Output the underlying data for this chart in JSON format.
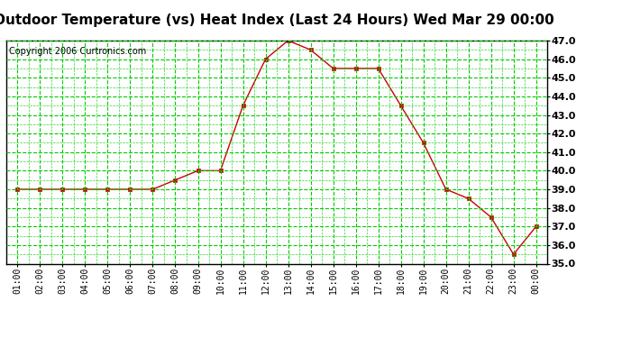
{
  "title": "Outdoor Temperature (vs) Heat Index (Last 24 Hours) Wed Mar 29 00:00",
  "copyright": "Copyright 2006 Curtronics.com",
  "x_labels": [
    "01:00",
    "02:00",
    "03:00",
    "04:00",
    "05:00",
    "06:00",
    "07:00",
    "08:00",
    "09:00",
    "10:00",
    "11:00",
    "12:00",
    "13:00",
    "14:00",
    "15:00",
    "16:00",
    "17:00",
    "18:00",
    "19:00",
    "20:00",
    "21:00",
    "22:00",
    "23:00",
    "00:00"
  ],
  "y_values": [
    39.0,
    39.0,
    39.0,
    39.0,
    39.0,
    39.0,
    39.0,
    39.5,
    40.0,
    40.0,
    43.5,
    46.0,
    47.0,
    46.5,
    45.5,
    45.5,
    45.5,
    43.5,
    41.5,
    39.0,
    38.5,
    37.5,
    35.5,
    37.0
  ],
  "line_color": "#cc0000",
  "marker_color": "#cc0000",
  "marker_style": "s",
  "marker_size": 2.5,
  "background_color": "#ffffff",
  "grid_color": "#00cc00",
  "ylim": [
    35.0,
    47.0
  ],
  "yticks": [
    35.0,
    36.0,
    37.0,
    38.0,
    39.0,
    40.0,
    41.0,
    42.0,
    43.0,
    44.0,
    45.0,
    46.0,
    47.0
  ],
  "title_fontsize": 11,
  "copyright_fontsize": 7,
  "tick_fontsize": 7,
  "ytick_fontsize": 8
}
